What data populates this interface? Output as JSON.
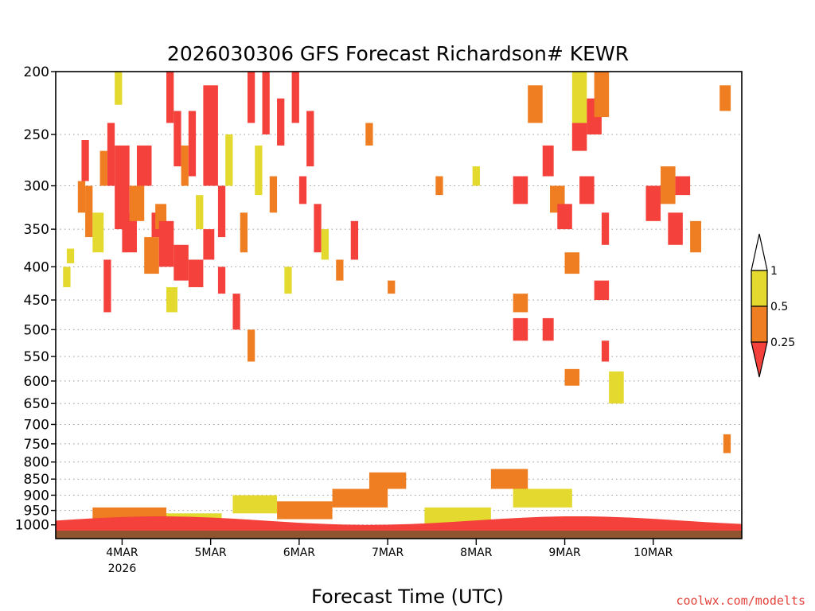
{
  "chart_data": {
    "type": "heatmap",
    "title": "2026030306 GFS Forecast Richardson# KEWR",
    "xlabel": "Forecast Time (UTC)",
    "ylabel": "",
    "credit": "coolwx.com/modelts",
    "scale": "log-pressure",
    "y_reversed": true,
    "ylim": [
      1050,
      200
    ],
    "y_ticks": [
      200,
      250,
      300,
      350,
      400,
      450,
      500,
      550,
      600,
      650,
      700,
      750,
      800,
      850,
      900,
      950,
      1000
    ],
    "x_ticks": [
      {
        "label": "4MAR",
        "sub": "2026",
        "hour": 18
      },
      {
        "label": "5MAR",
        "sub": "",
        "hour": 42
      },
      {
        "label": "6MAR",
        "sub": "",
        "hour": 66
      },
      {
        "label": "7MAR",
        "sub": "",
        "hour": 90
      },
      {
        "label": "8MAR",
        "sub": "",
        "hour": 114
      },
      {
        "label": "9MAR",
        "sub": "",
        "hour": 138
      },
      {
        "label": "10MAR",
        "sub": "",
        "hour": 162
      }
    ],
    "xlim_hours": [
      0,
      186
    ],
    "grid": "dotted horizontal at pressure ticks",
    "colorbar": {
      "levels": [
        0.25,
        0.5,
        1
      ],
      "labels": [
        "0.25",
        "0.5",
        "1"
      ],
      "colors": {
        "below_0.25": "#f4413b",
        "0.25_0.5": "#ef7e22",
        "0.5_1": "#e3d92f",
        "above_1": "#ffffff"
      }
    },
    "terrain_color": "#8e5530",
    "cells": [
      {
        "h0": 2,
        "h1": 4,
        "p0": 400,
        "p1": 430,
        "cat": "y"
      },
      {
        "h0": 3,
        "h1": 5,
        "p0": 375,
        "p1": 395,
        "cat": "y"
      },
      {
        "h0": 6,
        "h1": 8,
        "p0": 295,
        "p1": 330,
        "cat": "o"
      },
      {
        "h0": 7,
        "h1": 9,
        "p0": 255,
        "p1": 295,
        "cat": "r"
      },
      {
        "h0": 8,
        "h1": 10,
        "p0": 300,
        "p1": 360,
        "cat": "o"
      },
      {
        "h0": 10,
        "h1": 13,
        "p0": 330,
        "p1": 380,
        "cat": "y"
      },
      {
        "h0": 12,
        "h1": 14,
        "p0": 265,
        "p1": 300,
        "cat": "o"
      },
      {
        "h0": 13,
        "h1": 15,
        "p0": 390,
        "p1": 470,
        "cat": "r"
      },
      {
        "h0": 14,
        "h1": 16,
        "p0": 240,
        "p1": 300,
        "cat": "r"
      },
      {
        "h0": 16,
        "h1": 18,
        "p0": 200,
        "p1": 225,
        "cat": "y"
      },
      {
        "h0": 16,
        "h1": 20,
        "p0": 260,
        "p1": 350,
        "cat": "r"
      },
      {
        "h0": 18,
        "h1": 22,
        "p0": 330,
        "p1": 380,
        "cat": "r"
      },
      {
        "h0": 20,
        "h1": 24,
        "p0": 300,
        "p1": 340,
        "cat": "o"
      },
      {
        "h0": 22,
        "h1": 26,
        "p0": 260,
        "p1": 300,
        "cat": "r"
      },
      {
        "h0": 24,
        "h1": 28,
        "p0": 360,
        "p1": 410,
        "cat": "o"
      },
      {
        "h0": 26,
        "h1": 30,
        "p0": 330,
        "p1": 360,
        "cat": "r"
      },
      {
        "h0": 27,
        "h1": 30,
        "p0": 320,
        "p1": 350,
        "cat": "o"
      },
      {
        "h0": 28,
        "h1": 32,
        "p0": 340,
        "p1": 400,
        "cat": "r"
      },
      {
        "h0": 30,
        "h1": 32,
        "p0": 200,
        "p1": 240,
        "cat": "r"
      },
      {
        "h0": 30,
        "h1": 33,
        "p0": 430,
        "p1": 470,
        "cat": "y"
      },
      {
        "h0": 32,
        "h1": 34,
        "p0": 230,
        "p1": 280,
        "cat": "r"
      },
      {
        "h0": 32,
        "h1": 36,
        "p0": 370,
        "p1": 420,
        "cat": "r"
      },
      {
        "h0": 34,
        "h1": 36,
        "p0": 260,
        "p1": 300,
        "cat": "o"
      },
      {
        "h0": 36,
        "h1": 38,
        "p0": 230,
        "p1": 290,
        "cat": "r"
      },
      {
        "h0": 36,
        "h1": 40,
        "p0": 390,
        "p1": 430,
        "cat": "r"
      },
      {
        "h0": 38,
        "h1": 40,
        "p0": 310,
        "p1": 350,
        "cat": "y"
      },
      {
        "h0": 40,
        "h1": 44,
        "p0": 210,
        "p1": 300,
        "cat": "r"
      },
      {
        "h0": 40,
        "h1": 43,
        "p0": 350,
        "p1": 390,
        "cat": "r"
      },
      {
        "h0": 44,
        "h1": 46,
        "p0": 300,
        "p1": 360,
        "cat": "r"
      },
      {
        "h0": 44,
        "h1": 46,
        "p0": 400,
        "p1": 440,
        "cat": "r"
      },
      {
        "h0": 46,
        "h1": 48,
        "p0": 250,
        "p1": 300,
        "cat": "y"
      },
      {
        "h0": 48,
        "h1": 50,
        "p0": 440,
        "p1": 500,
        "cat": "r"
      },
      {
        "h0": 50,
        "h1": 52,
        "p0": 330,
        "p1": 380,
        "cat": "o"
      },
      {
        "h0": 52,
        "h1": 54,
        "p0": 200,
        "p1": 240,
        "cat": "r"
      },
      {
        "h0": 52,
        "h1": 54,
        "p0": 500,
        "p1": 560,
        "cat": "o"
      },
      {
        "h0": 54,
        "h1": 56,
        "p0": 260,
        "p1": 310,
        "cat": "y"
      },
      {
        "h0": 56,
        "h1": 58,
        "p0": 200,
        "p1": 250,
        "cat": "r"
      },
      {
        "h0": 58,
        "h1": 60,
        "p0": 290,
        "p1": 330,
        "cat": "o"
      },
      {
        "h0": 60,
        "h1": 62,
        "p0": 220,
        "p1": 260,
        "cat": "r"
      },
      {
        "h0": 62,
        "h1": 64,
        "p0": 400,
        "p1": 440,
        "cat": "y"
      },
      {
        "h0": 64,
        "h1": 66,
        "p0": 200,
        "p1": 240,
        "cat": "r"
      },
      {
        "h0": 66,
        "h1": 68,
        "p0": 290,
        "p1": 320,
        "cat": "r"
      },
      {
        "h0": 68,
        "h1": 70,
        "p0": 230,
        "p1": 280,
        "cat": "r"
      },
      {
        "h0": 70,
        "h1": 72,
        "p0": 320,
        "p1": 380,
        "cat": "r"
      },
      {
        "h0": 72,
        "h1": 74,
        "p0": 350,
        "p1": 390,
        "cat": "y"
      },
      {
        "h0": 76,
        "h1": 78,
        "p0": 390,
        "p1": 420,
        "cat": "o"
      },
      {
        "h0": 80,
        "h1": 82,
        "p0": 340,
        "p1": 390,
        "cat": "r"
      },
      {
        "h0": 84,
        "h1": 86,
        "p0": 240,
        "p1": 260,
        "cat": "o"
      },
      {
        "h0": 90,
        "h1": 92,
        "p0": 420,
        "p1": 440,
        "cat": "o"
      },
      {
        "h0": 103,
        "h1": 105,
        "p0": 290,
        "p1": 310,
        "cat": "o"
      },
      {
        "h0": 113,
        "h1": 115,
        "p0": 280,
        "p1": 300,
        "cat": "y"
      },
      {
        "h0": 124,
        "h1": 128,
        "p0": 290,
        "p1": 320,
        "cat": "r"
      },
      {
        "h0": 124,
        "h1": 128,
        "p0": 440,
        "p1": 470,
        "cat": "o"
      },
      {
        "h0": 124,
        "h1": 128,
        "p0": 480,
        "p1": 520,
        "cat": "r"
      },
      {
        "h0": 128,
        "h1": 132,
        "p0": 210,
        "p1": 240,
        "cat": "o"
      },
      {
        "h0": 132,
        "h1": 135,
        "p0": 260,
        "p1": 290,
        "cat": "r"
      },
      {
        "h0": 132,
        "h1": 135,
        "p0": 480,
        "p1": 520,
        "cat": "r"
      },
      {
        "h0": 134,
        "h1": 138,
        "p0": 300,
        "p1": 330,
        "cat": "o"
      },
      {
        "h0": 136,
        "h1": 140,
        "p0": 320,
        "p1": 350,
        "cat": "r"
      },
      {
        "h0": 138,
        "h1": 142,
        "p0": 380,
        "p1": 410,
        "cat": "o"
      },
      {
        "h0": 138,
        "h1": 142,
        "p0": 575,
        "p1": 610,
        "cat": "o"
      },
      {
        "h0": 140,
        "h1": 144,
        "p0": 200,
        "p1": 240,
        "cat": "y"
      },
      {
        "h0": 140,
        "h1": 144,
        "p0": 240,
        "p1": 265,
        "cat": "r"
      },
      {
        "h0": 142,
        "h1": 146,
        "p0": 290,
        "p1": 320,
        "cat": "r"
      },
      {
        "h0": 144,
        "h1": 148,
        "p0": 220,
        "p1": 250,
        "cat": "r"
      },
      {
        "h0": 146,
        "h1": 150,
        "p0": 200,
        "p1": 235,
        "cat": "o"
      },
      {
        "h0": 146,
        "h1": 150,
        "p0": 420,
        "p1": 450,
        "cat": "r"
      },
      {
        "h0": 148,
        "h1": 150,
        "p0": 330,
        "p1": 370,
        "cat": "r"
      },
      {
        "h0": 148,
        "h1": 150,
        "p0": 520,
        "p1": 560,
        "cat": "r"
      },
      {
        "h0": 150,
        "h1": 154,
        "p0": 580,
        "p1": 650,
        "cat": "y"
      },
      {
        "h0": 160,
        "h1": 164,
        "p0": 300,
        "p1": 340,
        "cat": "r"
      },
      {
        "h0": 164,
        "h1": 168,
        "p0": 280,
        "p1": 320,
        "cat": "o"
      },
      {
        "h0": 166,
        "h1": 170,
        "p0": 330,
        "p1": 370,
        "cat": "r"
      },
      {
        "h0": 168,
        "h1": 172,
        "p0": 290,
        "p1": 310,
        "cat": "r"
      },
      {
        "h0": 172,
        "h1": 175,
        "p0": 340,
        "p1": 380,
        "cat": "o"
      },
      {
        "h0": 180,
        "h1": 183,
        "p0": 210,
        "p1": 230,
        "cat": "o"
      },
      {
        "h0": 181,
        "h1": 183,
        "p0": 725,
        "p1": 775,
        "cat": "o"
      },
      {
        "h0": 10,
        "h1": 30,
        "p0": 940,
        "p1": 1000,
        "cat": "o"
      },
      {
        "h0": 30,
        "h1": 45,
        "p0": 960,
        "p1": 1000,
        "cat": "y"
      },
      {
        "h0": 48,
        "h1": 60,
        "p0": 900,
        "p1": 960,
        "cat": "y"
      },
      {
        "h0": 60,
        "h1": 75,
        "p0": 920,
        "p1": 980,
        "cat": "o"
      },
      {
        "h0": 75,
        "h1": 90,
        "p0": 880,
        "p1": 940,
        "cat": "o"
      },
      {
        "h0": 85,
        "h1": 95,
        "p0": 830,
        "p1": 880,
        "cat": "o"
      },
      {
        "h0": 100,
        "h1": 118,
        "p0": 940,
        "p1": 1000,
        "cat": "y"
      },
      {
        "h0": 118,
        "h1": 128,
        "p0": 820,
        "p1": 880,
        "cat": "o"
      },
      {
        "h0": 124,
        "h1": 140,
        "p0": 880,
        "p1": 940,
        "cat": "y"
      }
    ]
  }
}
